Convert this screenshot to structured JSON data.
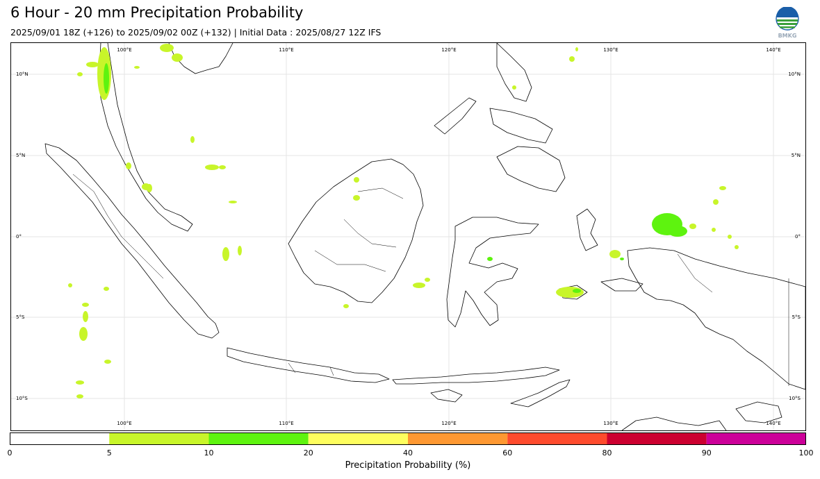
{
  "title": "6 Hour - 20 mm Precipitation Probability",
  "subtitle": "2025/09/01 18Z (+126) to 2025/09/02 00Z (+132) | Initial Data : 2025/08/27 12Z IFS",
  "logo": {
    "icon": "bmkg-logo",
    "text": "BMKG"
  },
  "map": {
    "extent": {
      "lon": [
        94,
        143
      ],
      "lat": [
        -12,
        12
      ]
    },
    "grid_lines": true,
    "longitude_labels": [
      "100°E",
      "110°E",
      "120°E",
      "130°E",
      "140°E"
    ],
    "latitude_labels": [
      "10°N",
      "5°N",
      "0°",
      "5°S",
      "10°S"
    ]
  },
  "colorbar": {
    "label": "Precipitation Probability (%)",
    "ticks": [
      "0",
      "5",
      "10",
      "20",
      "40",
      "60",
      "80",
      "90",
      "100"
    ],
    "bins": [
      {
        "from": 0,
        "to": 5,
        "color": "#ffffff"
      },
      {
        "from": 5,
        "to": 10,
        "color": "#c8f52a"
      },
      {
        "from": 10,
        "to": 20,
        "color": "#5ef30f"
      },
      {
        "from": 20,
        "to": 40,
        "color": "#fefe5e"
      },
      {
        "from": 40,
        "to": 60,
        "color": "#fe9832"
      },
      {
        "from": 60,
        "to": 80,
        "color": "#fe4b2d"
      },
      {
        "from": 80,
        "to": 90,
        "color": "#cc0030"
      },
      {
        "from": 90,
        "to": 100,
        "color": "#cc0099"
      }
    ]
  }
}
